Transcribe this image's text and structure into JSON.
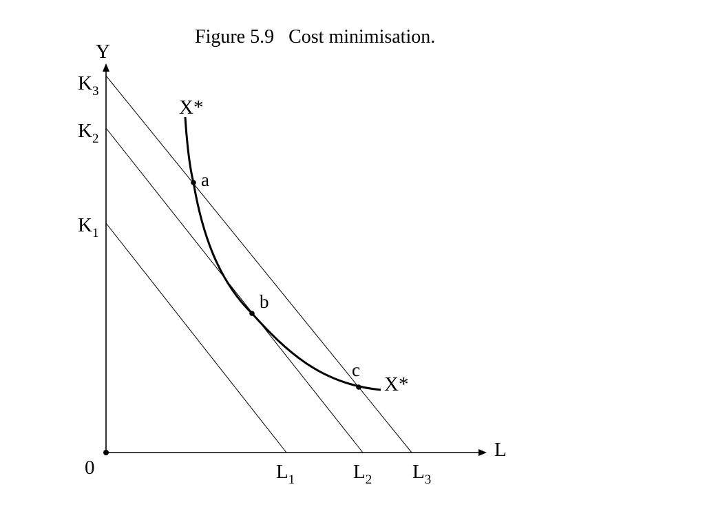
{
  "title": "Figure 5.9   Cost minimisation.",
  "axes": {
    "y_label": "Y",
    "x_label": "L",
    "origin_label": "0"
  },
  "isocosts": [
    {
      "k_main": "K",
      "k_sub": "1",
      "l_main": "L",
      "l_sub": "1"
    },
    {
      "k_main": "K",
      "k_sub": "2",
      "l_main": "L",
      "l_sub": "2"
    },
    {
      "k_main": "K",
      "k_sub": "3",
      "l_main": "L",
      "l_sub": "3"
    }
  ],
  "isoquant": {
    "label_start": "X*",
    "label_end": "X*"
  },
  "points": {
    "a": "a",
    "b": "b",
    "c": "c"
  }
}
